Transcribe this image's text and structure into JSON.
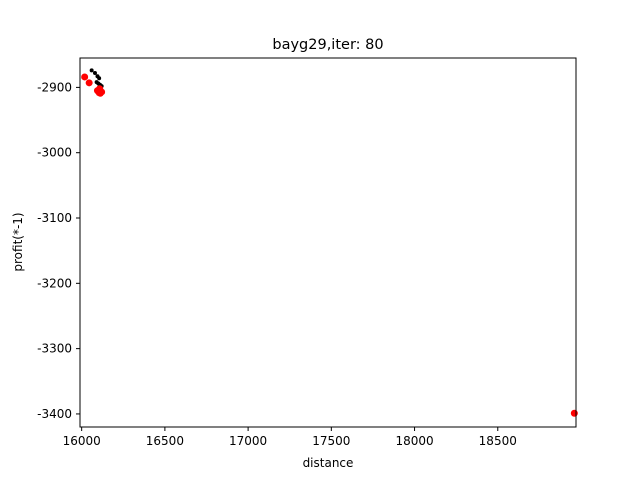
{
  "chart_data": {
    "type": "scatter",
    "title": "bayg29,iter: 80",
    "xlabel": "distance",
    "ylabel": "profit(*-1)",
    "xlim": [
      15990,
      18970
    ],
    "ylim": [
      -3420,
      -2855
    ],
    "xticks": [
      16000,
      16500,
      17000,
      17500,
      18000,
      18500
    ],
    "xtick_labels": [
      "16000",
      "16500",
      "17000",
      "17500",
      "18000",
      "18500"
    ],
    "yticks": [
      -2900,
      -3000,
      -3100,
      -3200,
      -3300,
      -3400
    ],
    "ytick_labels": [
      "-2900",
      "-3000",
      "-3100",
      "-3200",
      "-3300",
      "-3400"
    ],
    "grid": false,
    "series": [
      {
        "color": "#000000",
        "marker_radius": 2,
        "points": [
          {
            "x": 16060,
            "y": -2874
          },
          {
            "x": 16080,
            "y": -2878
          },
          {
            "x": 16095,
            "y": -2883
          },
          {
            "x": 16105,
            "y": -2886
          },
          {
            "x": 16090,
            "y": -2892
          },
          {
            "x": 16100,
            "y": -2894
          },
          {
            "x": 16110,
            "y": -2896
          },
          {
            "x": 16120,
            "y": -2898
          },
          {
            "x": 16105,
            "y": -2900
          },
          {
            "x": 16115,
            "y": -2904
          },
          {
            "x": 16100,
            "y": -2903
          }
        ]
      },
      {
        "color": "#ff0000",
        "marker_radius": 3.5,
        "points": [
          {
            "x": 16018,
            "y": -2884
          },
          {
            "x": 16045,
            "y": -2893
          },
          {
            "x": 16095,
            "y": -2905
          },
          {
            "x": 16105,
            "y": -2908
          },
          {
            "x": 16112,
            "y": -2909
          },
          {
            "x": 16120,
            "y": -2907
          },
          {
            "x": 16108,
            "y": -2902
          },
          {
            "x": 18960,
            "y": -3399
          }
        ]
      }
    ]
  }
}
